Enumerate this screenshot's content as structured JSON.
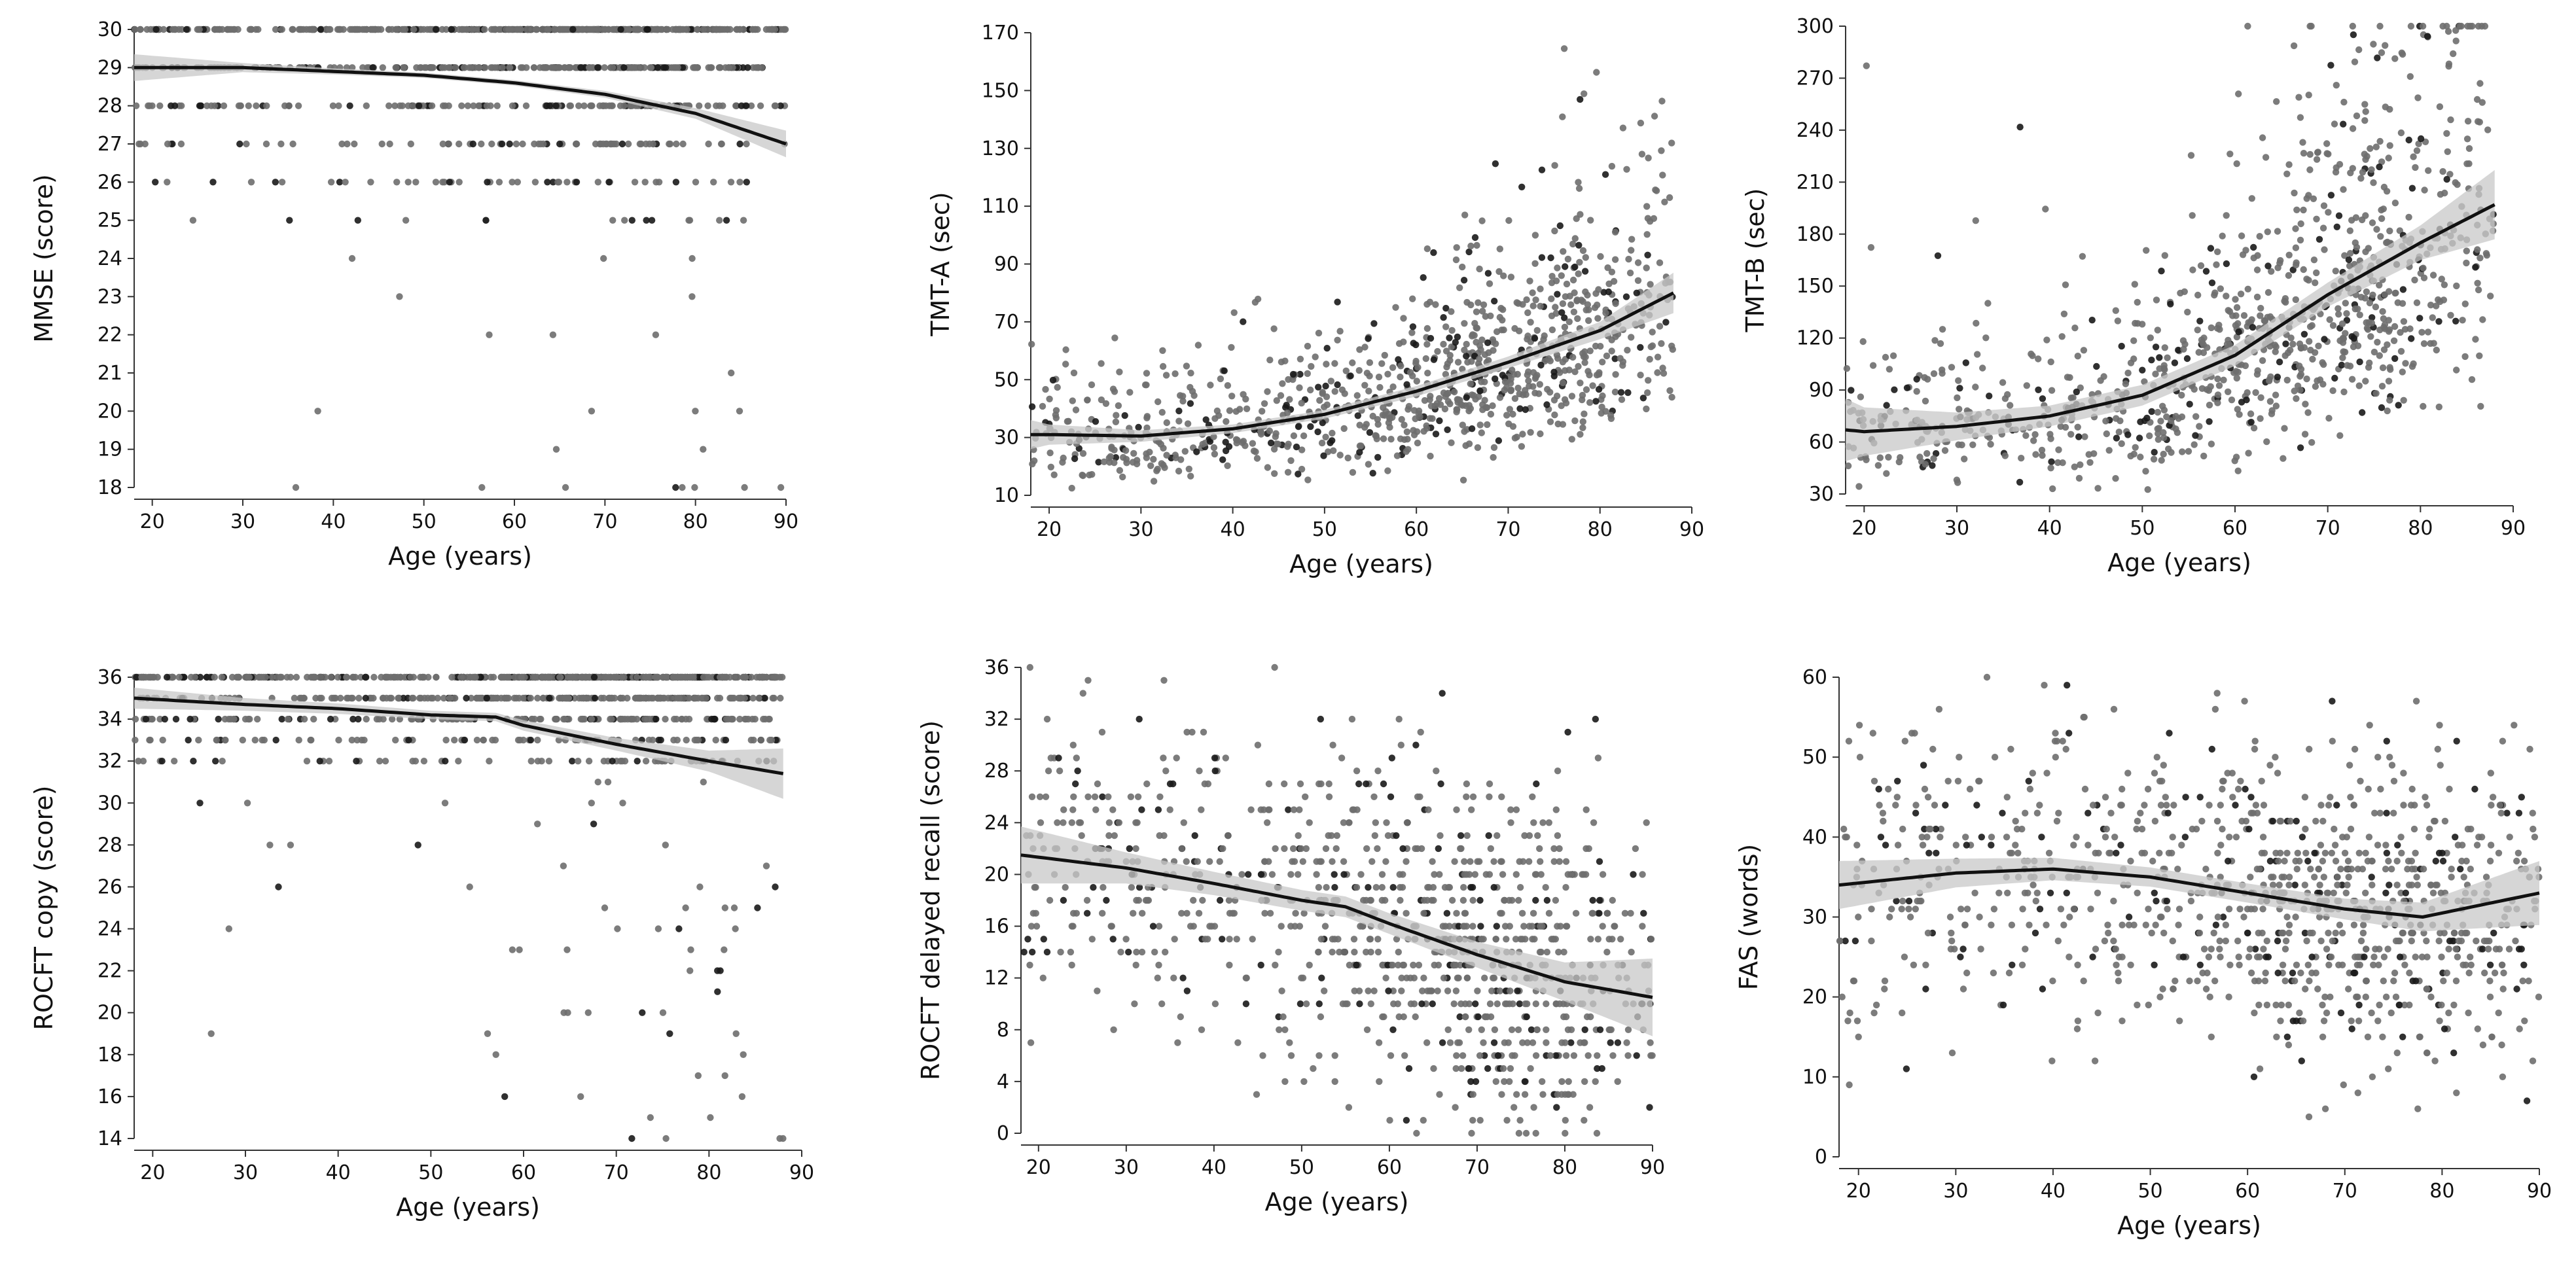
{
  "colors": {
    "points": "#6e6e6e",
    "points_dark": "#1a1a1a",
    "trend_line": "#111111",
    "confidence_band": "#c8c8c8",
    "axis": "#333333",
    "background": "#ffffff"
  },
  "chart_data": [
    {
      "type": "scatter",
      "title": "",
      "xlabel": "Age (years)",
      "ylabel": "MMSE (score)",
      "xlim": [
        18,
        90
      ],
      "ylim": [
        18,
        30
      ],
      "x_ticks": [
        20,
        30,
        40,
        50,
        60,
        70,
        80,
        90
      ],
      "y_ticks": [
        18,
        19,
        20,
        21,
        22,
        23,
        24,
        25,
        26,
        27,
        28,
        29,
        30
      ],
      "scatter": {
        "x_range": [
          18,
          90
        ],
        "peak_age": 70,
        "integer_y": true,
        "mode": "mmse"
      },
      "trend": {
        "x": [
          18,
          30,
          40,
          50,
          60,
          70,
          80,
          90
        ],
        "y": [
          29.0,
          29.0,
          28.9,
          28.8,
          28.6,
          28.3,
          27.8,
          27.0
        ],
        "ci": [
          0.35,
          0.12,
          0.08,
          0.07,
          0.07,
          0.09,
          0.14,
          0.35
        ]
      }
    },
    {
      "type": "scatter",
      "title": "",
      "xlabel": "Age (years)",
      "ylabel": "TMT-A (sec)",
      "xlim": [
        18,
        90
      ],
      "ylim": [
        10,
        170
      ],
      "x_ticks": [
        20,
        30,
        40,
        50,
        60,
        70,
        80,
        90
      ],
      "y_ticks": [
        10,
        30,
        50,
        70,
        90,
        110,
        130,
        150,
        170
      ],
      "scatter": {
        "x_range": [
          18,
          88
        ],
        "peak_age": 70,
        "integer_y": false,
        "mode": "tmta"
      },
      "trend": {
        "x": [
          18,
          20,
          30,
          40,
          50,
          60,
          70,
          80,
          88
        ],
        "y": [
          31,
          31,
          30.5,
          33,
          38,
          46,
          56,
          67,
          80
        ],
        "ci": [
          5,
          3.5,
          2,
          1.5,
          1.5,
          1.8,
          2,
          3,
          7
        ]
      }
    },
    {
      "type": "scatter",
      "title": "",
      "xlabel": "Age (years)",
      "ylabel": "TMT-B (sec)",
      "xlim": [
        18,
        90
      ],
      "ylim": [
        30,
        300
      ],
      "x_ticks": [
        20,
        30,
        40,
        50,
        60,
        70,
        80,
        90
      ],
      "y_ticks": [
        30,
        60,
        90,
        120,
        150,
        180,
        210,
        240,
        270,
        300
      ],
      "scatter": {
        "x_range": [
          18,
          88
        ],
        "peak_age": 70,
        "integer_y": false,
        "mode": "tmtb"
      },
      "trend": {
        "x": [
          18,
          20,
          30,
          40,
          50,
          60,
          70,
          80,
          88
        ],
        "y": [
          67,
          66,
          69,
          75,
          87,
          110,
          145,
          175,
          197
        ],
        "ci": [
          18,
          14,
          8,
          6,
          6,
          6,
          7,
          10,
          20
        ]
      }
    },
    {
      "type": "scatter",
      "title": "",
      "xlabel": "Age (years)",
      "ylabel": "ROCFT copy (score)",
      "xlim": [
        18,
        90
      ],
      "ylim": [
        14,
        36
      ],
      "x_ticks": [
        20,
        30,
        40,
        50,
        60,
        70,
        80,
        90
      ],
      "y_ticks": [
        14,
        16,
        18,
        20,
        22,
        24,
        26,
        28,
        30,
        32,
        34,
        36
      ],
      "scatter": {
        "x_range": [
          18,
          88
        ],
        "peak_age": 70,
        "integer_y": true,
        "mode": "copy"
      },
      "trend": {
        "x": [
          18,
          30,
          40,
          50,
          57,
          60,
          70,
          80,
          88
        ],
        "y": [
          35.0,
          34.7,
          34.5,
          34.2,
          34.1,
          33.7,
          32.8,
          32.0,
          31.4
        ],
        "ci": [
          0.5,
          0.3,
          0.25,
          0.2,
          0.2,
          0.25,
          0.3,
          0.5,
          1.2
        ]
      }
    },
    {
      "type": "scatter",
      "title": "",
      "xlabel": "Age (years)",
      "ylabel": "ROCFT delayed recall (score)",
      "xlim": [
        18,
        90
      ],
      "ylim": [
        0,
        36
      ],
      "x_ticks": [
        20,
        30,
        40,
        50,
        60,
        70,
        80,
        90
      ],
      "y_ticks": [
        0,
        4,
        8,
        12,
        16,
        20,
        24,
        28,
        32,
        36
      ],
      "scatter": {
        "x_range": [
          18,
          90
        ],
        "peak_age": 70,
        "integer_y": true,
        "mode": "recall"
      },
      "trend": {
        "x": [
          18,
          30,
          40,
          50,
          55,
          60,
          70,
          80,
          90
        ],
        "y": [
          21.5,
          20.5,
          19.3,
          18.0,
          17.5,
          16.2,
          13.8,
          11.7,
          10.5
        ],
        "ci": [
          2.2,
          1.2,
          0.9,
          0.8,
          0.8,
          0.8,
          1.0,
          1.5,
          3.0
        ]
      }
    },
    {
      "type": "scatter",
      "title": "",
      "xlabel": "Age (years)",
      "ylabel": "FAS (words)",
      "xlim": [
        18,
        90
      ],
      "ylim": [
        0,
        60
      ],
      "x_ticks": [
        20,
        30,
        40,
        50,
        60,
        70,
        80,
        90
      ],
      "y_ticks": [
        0,
        10,
        20,
        30,
        40,
        50,
        60
      ],
      "scatter": {
        "x_range": [
          18,
          90
        ],
        "peak_age": 70,
        "integer_y": true,
        "mode": "fas"
      },
      "trend": {
        "x": [
          18,
          30,
          40,
          50,
          60,
          70,
          78,
          90
        ],
        "y": [
          34,
          35.5,
          36,
          35,
          33,
          31,
          30,
          33
        ],
        "ci": [
          3,
          1.8,
          1.4,
          1.2,
          1.2,
          1.3,
          1.8,
          4
        ]
      }
    }
  ]
}
